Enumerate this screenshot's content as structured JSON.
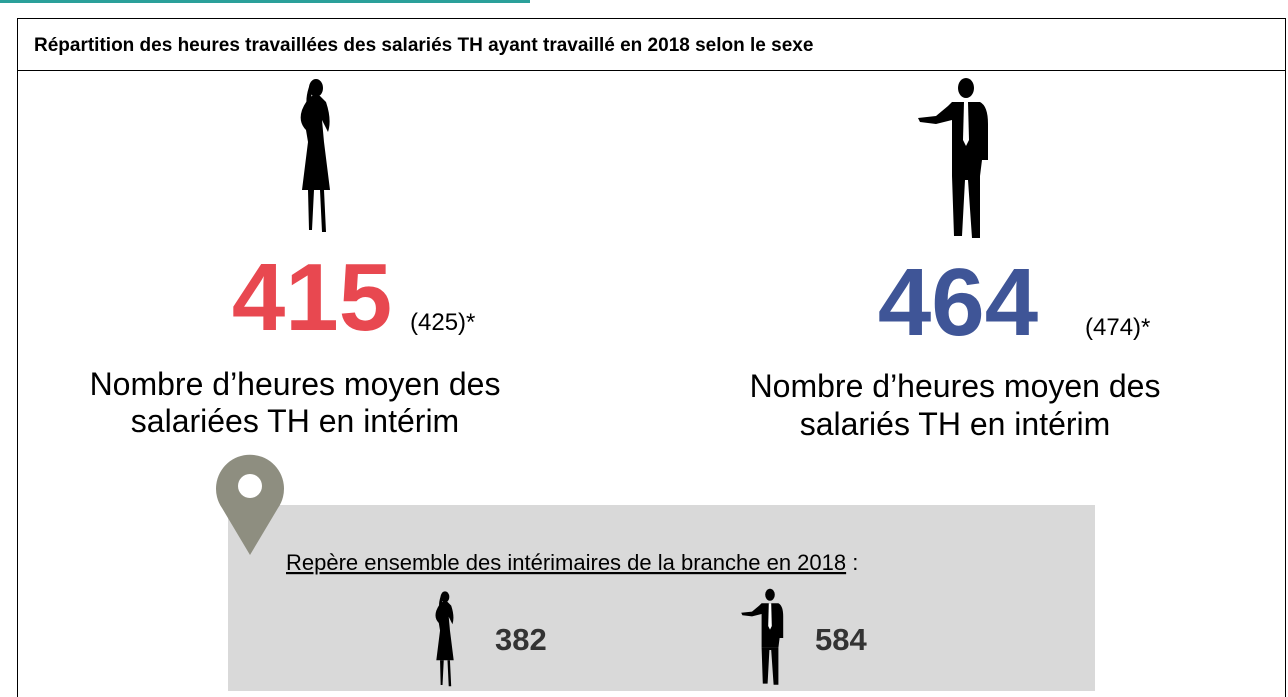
{
  "title": "Répartition des heures travaillées des salariés TH ayant travaillé en 2018 selon le sexe",
  "women": {
    "value": 415,
    "previous": "(425)*",
    "label_lines": [
      "Nombre d’heures moyen des",
      "salariées TH en intérim"
    ]
  },
  "men": {
    "value": 464,
    "previous": "(474)*",
    "label_lines": [
      "Nombre d’heures moyen des",
      "salariés TH en intérim"
    ]
  },
  "benchmark": {
    "label": "Repère ensemble des intérimaires de la branche en 2018",
    "separator": " :",
    "women": 382,
    "men": 584
  }
}
